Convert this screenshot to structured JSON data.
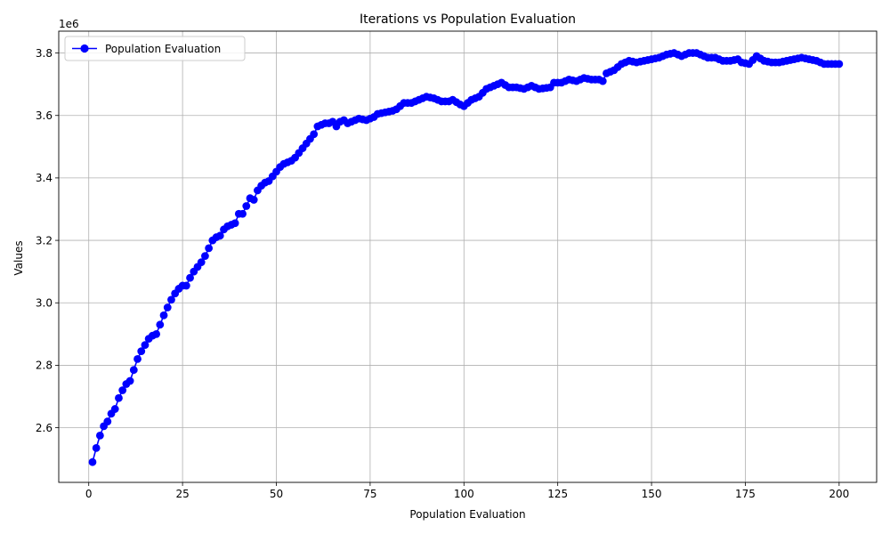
{
  "chart_data": {
    "type": "line",
    "title": "Iterations vs Population Evaluation",
    "xlabel": "Population Evaluation",
    "ylabel": "Values",
    "y_offset_label": "1e6",
    "y_multiplier": 1000000,
    "xlim": [
      -8,
      210
    ],
    "ylim": [
      2.425,
      3.87
    ],
    "x_ticks": [
      0,
      25,
      50,
      75,
      100,
      125,
      150,
      175,
      200
    ],
    "y_ticks": [
      2.6,
      2.8,
      3.0,
      3.2,
      3.4,
      3.6,
      3.8
    ],
    "y_tick_labels": [
      "2.6",
      "2.8",
      "3.0",
      "3.2",
      "3.4",
      "3.6",
      "3.8"
    ],
    "grid": true,
    "legend_position": "upper-left",
    "series": [
      {
        "name": "Population Evaluation",
        "color": "#0000ff",
        "marker": "circle",
        "anchors": [
          [
            1,
            2.49
          ],
          [
            2,
            2.535
          ],
          [
            3,
            2.575
          ],
          [
            4,
            2.605
          ],
          [
            5,
            2.62
          ],
          [
            6,
            2.645
          ],
          [
            7,
            2.66
          ],
          [
            8,
            2.695
          ],
          [
            9,
            2.72
          ],
          [
            10,
            2.74
          ],
          [
            11,
            2.75
          ],
          [
            12,
            2.785
          ],
          [
            13,
            2.82
          ],
          [
            14,
            2.845
          ],
          [
            15,
            2.865
          ],
          [
            16,
            2.885
          ],
          [
            17,
            2.895
          ],
          [
            18,
            2.9
          ],
          [
            19,
            2.93
          ],
          [
            20,
            2.96
          ],
          [
            21,
            2.985
          ],
          [
            22,
            3.01
          ],
          [
            23,
            3.03
          ],
          [
            24,
            3.045
          ],
          [
            25,
            3.055
          ],
          [
            26,
            3.055
          ],
          [
            27,
            3.08
          ],
          [
            28,
            3.1
          ],
          [
            29,
            3.115
          ],
          [
            30,
            3.13
          ],
          [
            31,
            3.15
          ],
          [
            32,
            3.175
          ],
          [
            33,
            3.2
          ],
          [
            34,
            3.21
          ],
          [
            35,
            3.215
          ],
          [
            36,
            3.235
          ],
          [
            37,
            3.245
          ],
          [
            38,
            3.25
          ],
          [
            39,
            3.255
          ],
          [
            40,
            3.285
          ],
          [
            41,
            3.285
          ],
          [
            42,
            3.31
          ],
          [
            43,
            3.335
          ],
          [
            44,
            3.33
          ],
          [
            45,
            3.36
          ],
          [
            46,
            3.375
          ],
          [
            47,
            3.385
          ],
          [
            48,
            3.39
          ],
          [
            49,
            3.405
          ],
          [
            50,
            3.42
          ],
          [
            51,
            3.435
          ],
          [
            52,
            3.445
          ],
          [
            53,
            3.45
          ],
          [
            54,
            3.455
          ],
          [
            55,
            3.465
          ],
          [
            56,
            3.48
          ],
          [
            57,
            3.495
          ],
          [
            58,
            3.51
          ],
          [
            59,
            3.525
          ],
          [
            60,
            3.54
          ],
          [
            61,
            3.565
          ],
          [
            62,
            3.57
          ],
          [
            63,
            3.575
          ],
          [
            64,
            3.575
          ],
          [
            65,
            3.58
          ],
          [
            66,
            3.565
          ],
          [
            67,
            3.58
          ],
          [
            68,
            3.585
          ],
          [
            69,
            3.575
          ],
          [
            70,
            3.58
          ],
          [
            72,
            3.59
          ],
          [
            74,
            3.585
          ],
          [
            76,
            3.595
          ],
          [
            77,
            3.605
          ],
          [
            79,
            3.61
          ],
          [
            81,
            3.615
          ],
          [
            82,
            3.62
          ],
          [
            84,
            3.64
          ],
          [
            86,
            3.64
          ],
          [
            88,
            3.65
          ],
          [
            90,
            3.66
          ],
          [
            92,
            3.655
          ],
          [
            94,
            3.645
          ],
          [
            96,
            3.645
          ],
          [
            97,
            3.65
          ],
          [
            99,
            3.635
          ],
          [
            100,
            3.63
          ],
          [
            102,
            3.65
          ],
          [
            104,
            3.66
          ],
          [
            106,
            3.685
          ],
          [
            108,
            3.695
          ],
          [
            110,
            3.705
          ],
          [
            112,
            3.69
          ],
          [
            114,
            3.69
          ],
          [
            116,
            3.685
          ],
          [
            118,
            3.695
          ],
          [
            120,
            3.685
          ],
          [
            123,
            3.69
          ],
          [
            124,
            3.705
          ],
          [
            126,
            3.705
          ],
          [
            128,
            3.715
          ],
          [
            130,
            3.71
          ],
          [
            132,
            3.72
          ],
          [
            134,
            3.715
          ],
          [
            136,
            3.715
          ],
          [
            137,
            3.71
          ],
          [
            138,
            3.735
          ],
          [
            140,
            3.745
          ],
          [
            142,
            3.765
          ],
          [
            144,
            3.775
          ],
          [
            146,
            3.77
          ],
          [
            148,
            3.775
          ],
          [
            150,
            3.78
          ],
          [
            152,
            3.785
          ],
          [
            154,
            3.795
          ],
          [
            156,
            3.8
          ],
          [
            158,
            3.79
          ],
          [
            160,
            3.8
          ],
          [
            162,
            3.8
          ],
          [
            163,
            3.795
          ],
          [
            165,
            3.785
          ],
          [
            167,
            3.785
          ],
          [
            169,
            3.775
          ],
          [
            171,
            3.775
          ],
          [
            173,
            3.78
          ],
          [
            174,
            3.77
          ],
          [
            176,
            3.765
          ],
          [
            178,
            3.79
          ],
          [
            180,
            3.775
          ],
          [
            182,
            3.77
          ],
          [
            184,
            3.77
          ],
          [
            186,
            3.775
          ],
          [
            188,
            3.78
          ],
          [
            190,
            3.785
          ],
          [
            192,
            3.78
          ],
          [
            194,
            3.775
          ],
          [
            196,
            3.765
          ],
          [
            198,
            3.765
          ],
          [
            200,
            3.765
          ]
        ]
      }
    ]
  }
}
